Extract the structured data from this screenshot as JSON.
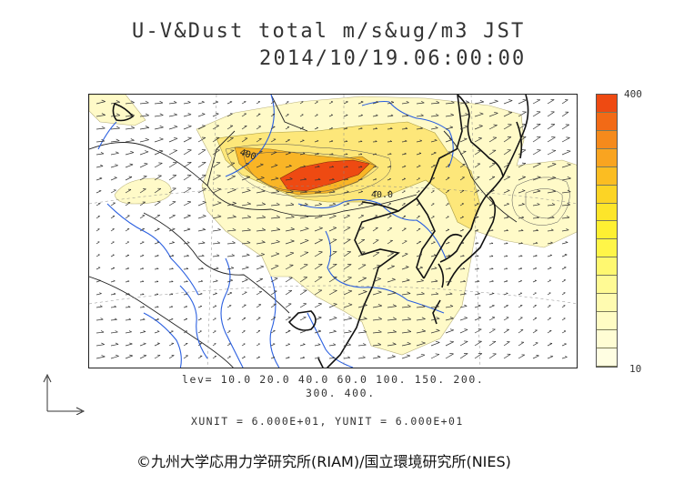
{
  "title": {
    "line1": "U-V&Dust total m/s&ug/m3 JST",
    "line2": "2014/10/19.06:00:00"
  },
  "contour_labels": {
    "north": "400",
    "center": "40.0"
  },
  "colorbar": {
    "max_label": "400",
    "min_label": "10",
    "colors_top_to_bottom": [
      "#ee4a12",
      "#f26a16",
      "#f58a1c",
      "#f9a420",
      "#fbbd22",
      "#fcd425",
      "#fde52a",
      "#fef032",
      "#fff548",
      "#fff870",
      "#fffa94",
      "#fffbb0",
      "#fffcc4",
      "#fffdd4",
      "#fffee2"
    ]
  },
  "levels": {
    "line1": "lev= 10.0 20.0 40.0 60.0 100. 150. 200.",
    "line2": "300. 400."
  },
  "units": {
    "text": "XUNIT = 6.000E+01, YUNIT = 6.000E+01"
  },
  "credit": {
    "text": "©九州大学応用力学研究所(RIAM)/国立環境研究所(NIES)"
  },
  "map": {
    "region": "East Asia",
    "colors": {
      "coast": "#111111",
      "river": "#2a5fe0",
      "border": "#222222",
      "dust_light": "#fffac8",
      "dust_mid": "#fde77a",
      "dust_high": "#f9b526",
      "dust_peak": "#ee4a12",
      "wind_arrow": "#333333"
    }
  }
}
